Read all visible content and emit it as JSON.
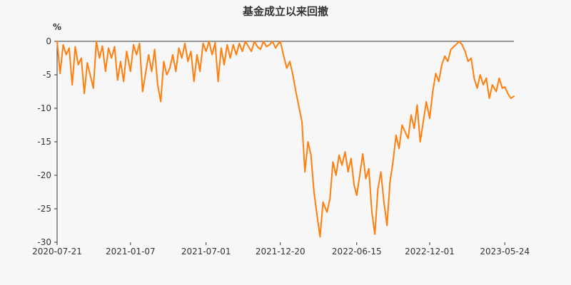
{
  "chart_data": {
    "type": "line",
    "title": "基金成立以来回撤",
    "y_unit": "%",
    "ylim": [
      -30,
      0
    ],
    "y_ticks": [
      0,
      -5,
      -10,
      -15,
      -20,
      -25,
      -30
    ],
    "x_ticks": [
      "2020-07-21",
      "2021-01-07",
      "2021-07-01",
      "2021-12-20",
      "2022-06-15",
      "2022-12-01",
      "2023-05-24"
    ],
    "grid": false,
    "series": [
      {
        "color": "#ff7f0e",
        "x": [
          "2020-07-21",
          "2020-07-28",
          "2020-08-04",
          "2020-08-11",
          "2020-08-18",
          "2020-08-25",
          "2020-09-01",
          "2020-09-08",
          "2020-09-15",
          "2020-09-22",
          "2020-09-29",
          "2020-10-13",
          "2020-10-20",
          "2020-10-27",
          "2020-11-03",
          "2020-11-10",
          "2020-11-17",
          "2020-11-24",
          "2020-12-01",
          "2020-12-08",
          "2020-12-15",
          "2020-12-22",
          "2020-12-29",
          "2021-01-07",
          "2021-01-14",
          "2021-01-21",
          "2021-01-28",
          "2021-02-04",
          "2021-02-18",
          "2021-02-25",
          "2021-03-04",
          "2021-03-11",
          "2021-03-18",
          "2021-03-25",
          "2021-04-01",
          "2021-04-08",
          "2021-04-15",
          "2021-04-22",
          "2021-04-29",
          "2021-05-06",
          "2021-05-13",
          "2021-05-20",
          "2021-05-27",
          "2021-06-03",
          "2021-06-10",
          "2021-06-17",
          "2021-06-24",
          "2021-07-01",
          "2021-07-08",
          "2021-07-15",
          "2021-07-22",
          "2021-07-29",
          "2021-08-05",
          "2021-08-12",
          "2021-08-19",
          "2021-08-26",
          "2021-09-02",
          "2021-09-09",
          "2021-09-16",
          "2021-09-23",
          "2021-09-30",
          "2021-10-14",
          "2021-10-21",
          "2021-10-28",
          "2021-11-04",
          "2021-11-11",
          "2021-11-18",
          "2021-11-25",
          "2021-12-02",
          "2021-12-09",
          "2021-12-16",
          "2021-12-20",
          "2021-12-27",
          "2022-01-04",
          "2022-01-11",
          "2022-01-18",
          "2022-01-25",
          "2022-02-08",
          "2022-02-15",
          "2022-02-22",
          "2022-03-01",
          "2022-03-08",
          "2022-03-15",
          "2022-03-22",
          "2022-03-29",
          "2022-04-07",
          "2022-04-14",
          "2022-04-21",
          "2022-04-28",
          "2022-05-05",
          "2022-05-12",
          "2022-05-19",
          "2022-05-26",
          "2022-06-02",
          "2022-06-09",
          "2022-06-15",
          "2022-06-22",
          "2022-06-29",
          "2022-07-06",
          "2022-07-13",
          "2022-07-20",
          "2022-07-27",
          "2022-08-03",
          "2022-08-10",
          "2022-08-17",
          "2022-08-24",
          "2022-08-31",
          "2022-09-07",
          "2022-09-14",
          "2022-09-21",
          "2022-09-28",
          "2022-10-12",
          "2022-10-19",
          "2022-10-26",
          "2022-11-02",
          "2022-11-09",
          "2022-11-16",
          "2022-11-23",
          "2022-12-01",
          "2022-12-08",
          "2022-12-15",
          "2022-12-22",
          "2022-12-29",
          "2023-01-05",
          "2023-01-12",
          "2023-01-19",
          "2023-01-31",
          "2023-02-07",
          "2023-02-14",
          "2023-02-21",
          "2023-02-28",
          "2023-03-07",
          "2023-03-14",
          "2023-03-21",
          "2023-03-28",
          "2023-04-04",
          "2023-04-11",
          "2023-04-18",
          "2023-04-25",
          "2023-05-04",
          "2023-05-11",
          "2023-05-18",
          "2023-05-24",
          "2023-05-31",
          "2023-06-07",
          "2023-06-14"
        ],
        "y": [
          0,
          -4.8,
          -0.5,
          -2.0,
          -1.0,
          -6.5,
          -0.8,
          -3.5,
          -2.5,
          -7.8,
          -3.2,
          -7.0,
          0,
          -2.5,
          -0.7,
          -4.5,
          -1.0,
          -2.5,
          -0.8,
          -5.8,
          -3.0,
          -6.0,
          -1.5,
          -4.5,
          -0.5,
          -2.0,
          -0.3,
          -7.5,
          -2.0,
          -4.5,
          -1.2,
          -6.5,
          -9.0,
          -3.0,
          -5.0,
          -4.0,
          -2.0,
          -4.5,
          -1.0,
          -2.5,
          -0.3,
          -3.0,
          -1.5,
          -6.0,
          -2.0,
          -4.5,
          -0.3,
          -1.5,
          0,
          -2.0,
          -0.2,
          -6.0,
          -1.0,
          -3.5,
          -0.5,
          -2.5,
          -0.5,
          -2.0,
          -0.3,
          -1.5,
          0,
          -1.5,
          0,
          -0.8,
          -1.2,
          0,
          -0.8,
          -0.5,
          0,
          -1.0,
          -0.3,
          0,
          -2.0,
          -4.0,
          -3.0,
          -5.0,
          -7.5,
          -12.0,
          -19.5,
          -15.0,
          -17.0,
          -22.5,
          -26.0,
          -29.2,
          -24.0,
          -25.5,
          -23.5,
          -18.0,
          -20.0,
          -17.0,
          -18.5,
          -16.5,
          -19.5,
          -17.5,
          -21.5,
          -23.0,
          -20.0,
          -16.8,
          -20.5,
          -19.0,
          -25.5,
          -28.8,
          -22.0,
          -19.5,
          -24.0,
          -27.5,
          -21.0,
          -18.0,
          -14.0,
          -16.0,
          -12.5,
          -14.5,
          -11.0,
          -13.0,
          -9.5,
          -15.0,
          -12.0,
          -9.0,
          -11.5,
          -7.5,
          -4.8,
          -6.0,
          -3.5,
          -2.2,
          -3.0,
          -1.2,
          -0.5,
          0,
          -0.5,
          -1.5,
          -3.0,
          -2.5,
          -5.5,
          -7.0,
          -5.0,
          -6.5,
          -5.5,
          -8.5,
          -6.5,
          -7.5,
          -5.5,
          -7.0,
          -6.8,
          -7.8,
          -8.5,
          -8.2
        ]
      }
    ]
  }
}
